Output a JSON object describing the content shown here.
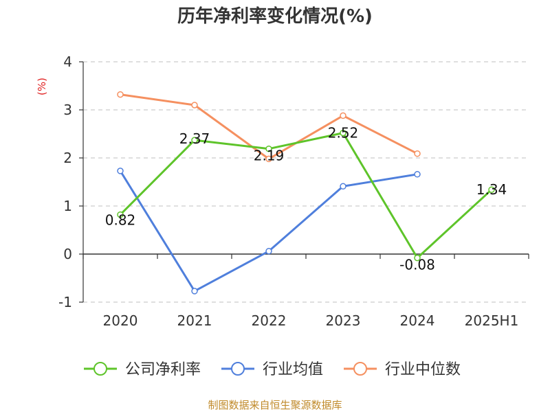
{
  "chart_data": {
    "type": "line",
    "title": "历年净利率变化情况(%)",
    "ylabel": "(%)",
    "categories": [
      "2020",
      "2021",
      "2022",
      "2023",
      "2024",
      "2025H1"
    ],
    "y_ticks": [
      "-1",
      "0",
      "1",
      "2",
      "3",
      "4"
    ],
    "ylim": [
      -1,
      4
    ],
    "grid": "horizontal-dashed",
    "legend_position": "bottom",
    "series": [
      {
        "name": "公司净利率",
        "color": "#5ec42a",
        "values": [
          0.82,
          2.37,
          2.19,
          2.52,
          -0.08,
          1.34
        ],
        "labels": [
          "0.82",
          "2.37",
          "2.19",
          "2.52",
          "-0.08",
          "1.34"
        ]
      },
      {
        "name": "行业均值",
        "color": "#4f7fdc",
        "values": [
          1.73,
          -0.77,
          0.06,
          1.41,
          1.66,
          null
        ]
      },
      {
        "name": "行业中位数",
        "color": "#f59060",
        "values": [
          3.32,
          3.1,
          1.98,
          2.88,
          2.09,
          null
        ]
      }
    ],
    "source": "制图数据来自恒生聚源数据库"
  }
}
